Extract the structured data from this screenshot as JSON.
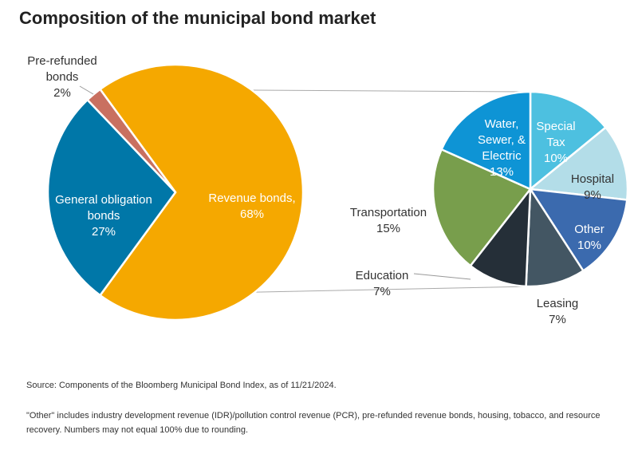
{
  "title": "Composition of the municipal bond market",
  "chart_data": [
    {
      "type": "pie",
      "slices": [
        {
          "label": "Revenue bonds,",
          "value": 68,
          "value_label": "68%",
          "color": "#F5A800"
        },
        {
          "label": "General obligation bonds",
          "value": 27,
          "value_label": "27%",
          "color": "#0077A8"
        },
        {
          "label": "Pre-refunded bonds",
          "value": 2,
          "value_label": "2%",
          "color": "#C97060"
        }
      ]
    },
    {
      "type": "pie",
      "title": "",
      "slices": [
        {
          "label": "Special Tax",
          "value": 10,
          "value_label": "10%",
          "color": "#4DC0E0"
        },
        {
          "label": "Hospital",
          "value": 9,
          "value_label": "9%",
          "color": "#B3DDE8"
        },
        {
          "label": "Other",
          "value": 10,
          "value_label": "10%",
          "color": "#3B6AAE"
        },
        {
          "label": "Leasing",
          "value": 7,
          "value_label": "7%",
          "color": "#435663"
        },
        {
          "label": "Education",
          "value": 7,
          "value_label": "7%",
          "color": "#252F38"
        },
        {
          "label": "Transportation",
          "value": 15,
          "value_label": "15%",
          "color": "#789E4C"
        },
        {
          "label": "Water, Sewer, & Electric",
          "value": 13,
          "value_label": "13%",
          "color": "#0E94D5"
        }
      ]
    }
  ],
  "source": "Source: Components of the Bloomberg Municipal Bond Index, as of 11/21/2024.",
  "footnote": "\"Other\" includes industry development revenue (IDR)/pollution control revenue (PCR), pre-refunded revenue bonds, housing, tobacco, and resource recovery. Numbers may not equal 100% due to rounding."
}
